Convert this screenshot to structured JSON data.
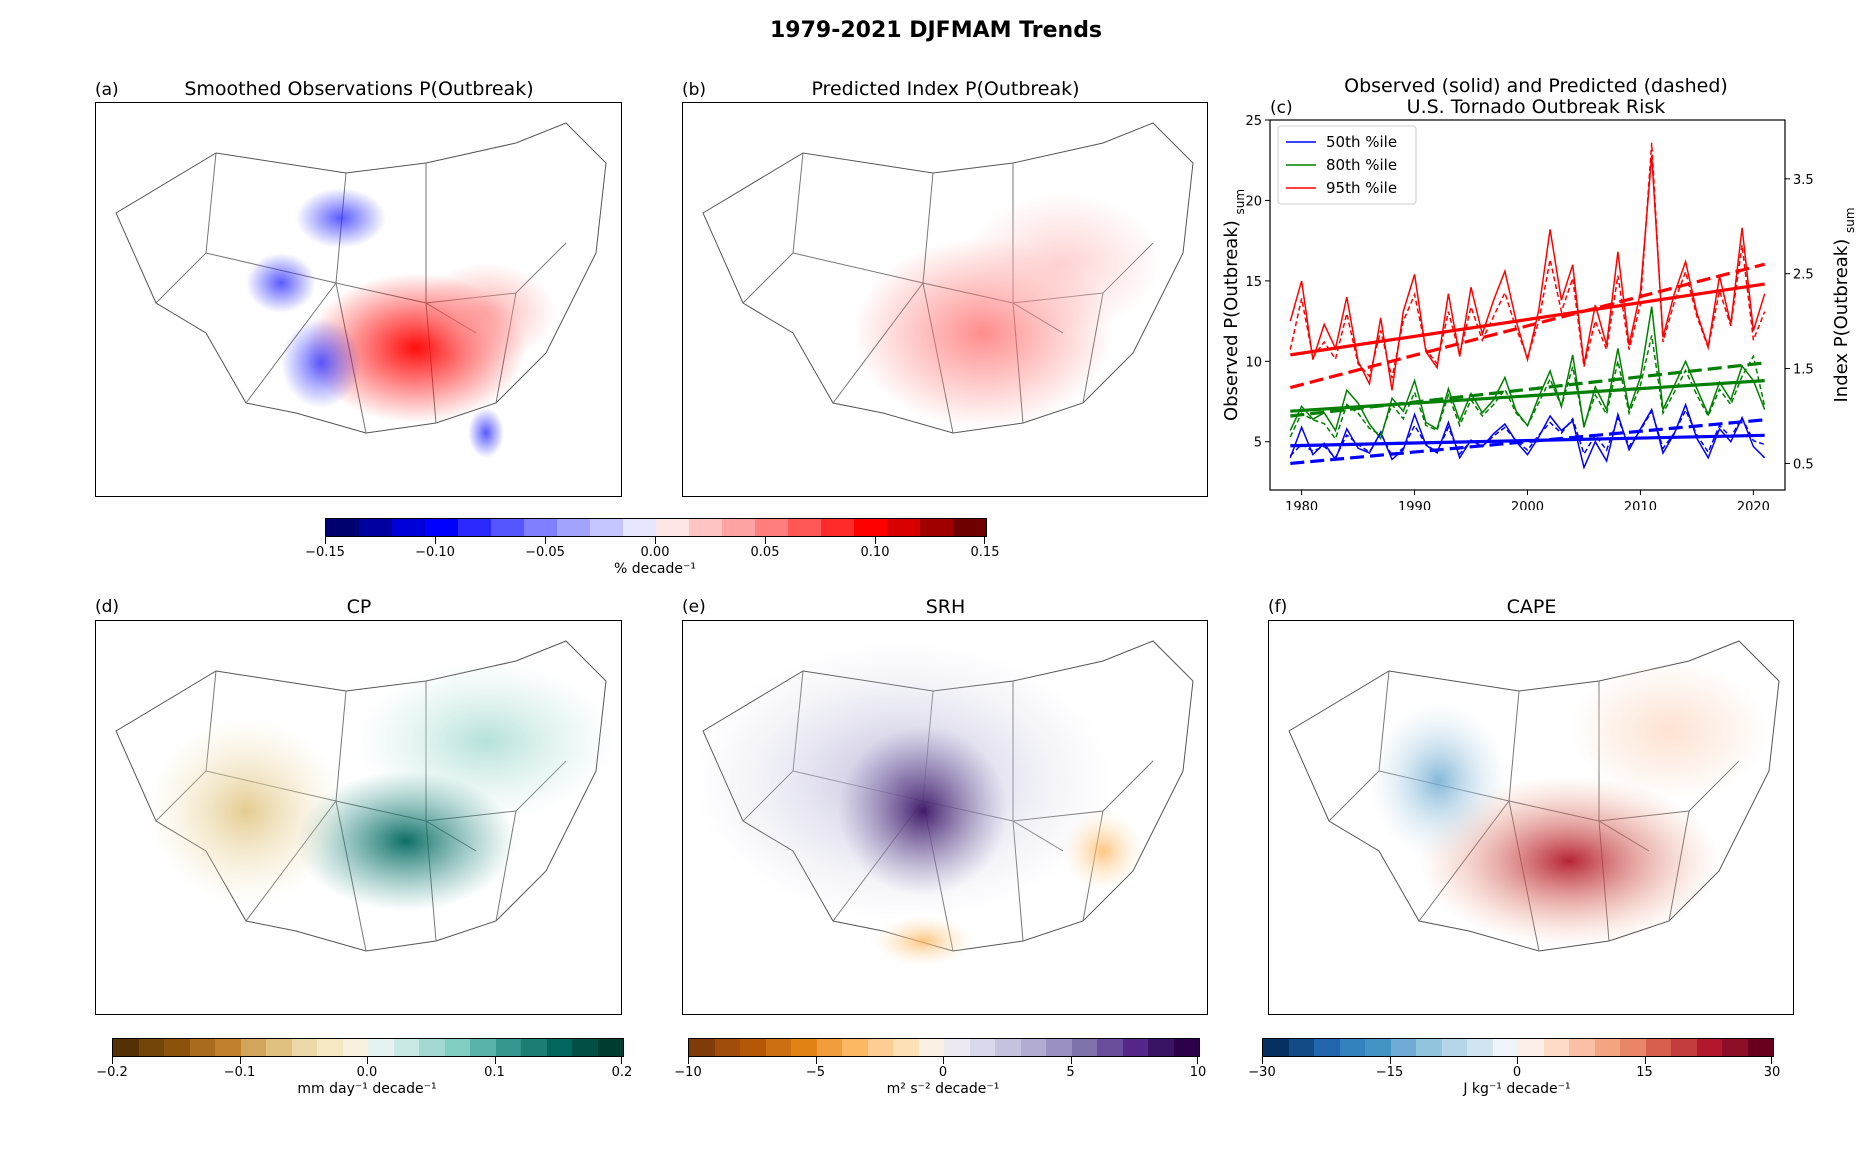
{
  "figure": {
    "title": "1979-2021 DJFMAM Trends"
  },
  "panels": {
    "a": {
      "label": "(a)",
      "title": "Smoothed Observations P(Outbreak)"
    },
    "b": {
      "label": "(b)",
      "title": "Predicted Index P(Outbreak)"
    },
    "c": {
      "label": "(c)",
      "title_line1": "Observed (solid) and Predicted (dashed)",
      "title_line2": "U.S. Tornado Outbreak Risk"
    },
    "d": {
      "label": "(d)",
      "title": "CP"
    },
    "e": {
      "label": "(e)",
      "title": "SRH"
    },
    "f": {
      "label": "(f)",
      "title": "CAPE"
    }
  },
  "colorbars": {
    "top": {
      "label": "% decade⁻¹",
      "ticks": [
        "−0.15",
        "−0.10",
        "−0.05",
        "0.00",
        "0.05",
        "0.10",
        "0.15"
      ],
      "colors": [
        "#00006e",
        "#0000a0",
        "#0000d8",
        "#0000ff",
        "#2a2aff",
        "#5656ff",
        "#7f7fff",
        "#a2a2ff",
        "#c4c4ff",
        "#e6e6ff",
        "#ffe6e6",
        "#ffc4c4",
        "#ffa2a2",
        "#ff7f7f",
        "#ff5656",
        "#ff2a2a",
        "#ff0000",
        "#d80000",
        "#a00000",
        "#6e0000"
      ]
    },
    "cp": {
      "label": "mm day⁻¹ decade⁻¹",
      "ticks": [
        "−0.2",
        "−0.1",
        "0.0",
        "0.1",
        "0.2"
      ],
      "colors": [
        "#543005",
        "#744508",
        "#8c510a",
        "#a86c1c",
        "#bf812d",
        "#d2a55c",
        "#dfc27d",
        "#ebd9a8",
        "#f6e8c3",
        "#f8f1e0",
        "#e4f3f1",
        "#c7eae5",
        "#a3d9d1",
        "#80cdc1",
        "#5ab4ac",
        "#35978f",
        "#1c7d75",
        "#01665e",
        "#014f45",
        "#003c30"
      ]
    },
    "srh": {
      "label": "m² s⁻² decade⁻¹",
      "ticks": [
        "−10",
        "−5",
        "0",
        "5",
        "10"
      ],
      "colors": [
        "#7f3b08",
        "#a04c0a",
        "#b35806",
        "#cc6f12",
        "#e08214",
        "#f09e3c",
        "#fdb863",
        "#fdcd92",
        "#fee0b6",
        "#faf0e4",
        "#ece9f2",
        "#d8daeb",
        "#c4c2dd",
        "#b2abd2",
        "#9b90c2",
        "#8073ac",
        "#6a4d9c",
        "#542788",
        "#3b1364",
        "#2d004b"
      ]
    },
    "cape": {
      "label": "J kg⁻¹ decade⁻¹",
      "ticks": [
        "−30",
        "−15",
        "0",
        "15",
        "30"
      ],
      "colors": [
        "#053061",
        "#124b86",
        "#2166ac",
        "#3381bd",
        "#4393c3",
        "#6fabd2",
        "#92c5de",
        "#b5d6e8",
        "#d1e5f0",
        "#eef4f8",
        "#fcefe8",
        "#fddbc7",
        "#f9c2a6",
        "#f4a582",
        "#e8866a",
        "#d6604d",
        "#c33b3d",
        "#b2182b",
        "#8c0e27",
        "#67001f"
      ]
    }
  },
  "chart_data": {
    "type": "line",
    "title": "Observed (solid) and Predicted (dashed) U.S. Tornado Outbreak Risk",
    "xlabel": "",
    "ylabel": "Observed P(Outbreak)sum",
    "ylabel_main": "Observed P(Outbreak)",
    "ylabel_sub": "sum",
    "y2label_main": "Index P(Outbreak)",
    "y2label_sub": "sum",
    "xlim": [
      1977.2,
      2022.8
    ],
    "ylim": [
      2.0,
      25.0
    ],
    "y2lim": [
      0.22,
      4.12
    ],
    "xticks": [
      1980,
      1990,
      2000,
      2010,
      2020
    ],
    "yticks": [
      5,
      10,
      15,
      20,
      25
    ],
    "y2ticks": [
      0.5,
      1.5,
      2.5,
      3.5
    ],
    "legend_position": "top-left",
    "x": [
      1979,
      1980,
      1981,
      1982,
      1983,
      1984,
      1985,
      1986,
      1987,
      1988,
      1989,
      1990,
      1991,
      1992,
      1993,
      1994,
      1995,
      1996,
      1997,
      1998,
      1999,
      2000,
      2001,
      2002,
      2003,
      2004,
      2005,
      2006,
      2007,
      2008,
      2009,
      2010,
      2011,
      2012,
      2013,
      2014,
      2015,
      2016,
      2017,
      2018,
      2019,
      2020,
      2021
    ],
    "series": [
      {
        "name": "50th %ile",
        "color": "#0000ff",
        "style": "solid",
        "axis": "left",
        "values": [
          4.0,
          5.9,
          4.2,
          4.9,
          3.9,
          5.8,
          4.6,
          4.3,
          5.6,
          3.9,
          4.5,
          6.7,
          4.8,
          4.3,
          6.2,
          4.0,
          5.1,
          4.7,
          5.5,
          6.1,
          5.0,
          4.2,
          5.3,
          6.6,
          5.7,
          6.3,
          3.4,
          5.0,
          3.8,
          6.7,
          4.5,
          5.8,
          7.0,
          4.3,
          5.5,
          7.3,
          5.2,
          4.0,
          5.8,
          5.0,
          6.5,
          4.7,
          4.0
        ]
      },
      {
        "name": "80th %ile",
        "color": "#008000",
        "style": "solid",
        "axis": "left",
        "values": [
          5.7,
          7.2,
          6.4,
          6.8,
          5.7,
          8.2,
          7.4,
          6.1,
          5.2,
          7.7,
          6.9,
          8.8,
          6.2,
          5.8,
          8.3,
          6.3,
          8.0,
          6.8,
          7.6,
          9.0,
          6.9,
          6.0,
          7.8,
          9.4,
          7.2,
          10.4,
          5.9,
          8.4,
          7.0,
          10.8,
          7.0,
          9.0,
          13.4,
          7.0,
          8.5,
          10.0,
          8.3,
          6.7,
          8.7,
          7.6,
          9.7,
          8.8,
          7.0
        ]
      },
      {
        "name": "95th %ile",
        "color": "#ff0000",
        "style": "solid",
        "axis": "left",
        "values": [
          12.5,
          15.0,
          10.1,
          12.3,
          10.8,
          14.0,
          10.0,
          8.6,
          12.7,
          8.2,
          13.1,
          15.4,
          10.6,
          9.6,
          14.2,
          10.3,
          14.6,
          11.7,
          13.8,
          15.6,
          12.5,
          10.1,
          13.2,
          18.2,
          13.8,
          16.0,
          9.8,
          13.5,
          11.0,
          16.8,
          11.0,
          14.3,
          22.8,
          11.5,
          14.2,
          16.2,
          13.0,
          10.9,
          15.3,
          12.3,
          18.3,
          11.9,
          14.2
        ]
      },
      {
        "name": "50th %ile predicted",
        "color": "#0000ff",
        "style": "dashed",
        "axis": "right",
        "values": [
          0.58,
          0.7,
          0.63,
          0.68,
          0.56,
          0.8,
          0.7,
          0.62,
          0.82,
          0.58,
          0.66,
          0.9,
          0.7,
          0.62,
          0.88,
          0.6,
          0.74,
          0.68,
          0.79,
          0.88,
          0.74,
          0.64,
          0.8,
          0.93,
          0.82,
          0.97,
          0.6,
          0.8,
          0.64,
          0.98,
          0.68,
          0.85,
          1.05,
          0.66,
          0.82,
          1.06,
          0.8,
          0.62,
          0.9,
          0.78,
          0.98,
          0.74,
          0.7
        ]
      },
      {
        "name": "80th %ile predicted",
        "color": "#008000",
        "style": "dashed",
        "axis": "right",
        "values": [
          0.78,
          1.03,
          0.96,
          0.92,
          0.76,
          1.12,
          1.03,
          0.87,
          0.8,
          1.12,
          0.97,
          1.25,
          0.9,
          0.85,
          1.22,
          0.9,
          1.17,
          1.0,
          1.12,
          1.28,
          1.03,
          0.9,
          1.14,
          1.39,
          1.1,
          1.52,
          0.9,
          1.22,
          1.02,
          1.58,
          1.03,
          1.32,
          1.85,
          1.03,
          1.25,
          1.48,
          1.22,
          1.0,
          1.28,
          1.12,
          1.42,
          1.63,
          1.1
        ]
      },
      {
        "name": "95th %ile predicted",
        "color": "#ff0000",
        "style": "dashed",
        "axis": "right",
        "values": [
          1.7,
          2.24,
          1.62,
          1.78,
          1.6,
          2.08,
          1.55,
          1.42,
          1.9,
          1.4,
          2.0,
          2.28,
          1.7,
          1.55,
          2.1,
          1.65,
          2.15,
          1.8,
          2.05,
          2.3,
          1.92,
          1.62,
          2.0,
          2.65,
          2.1,
          2.45,
          1.52,
          2.0,
          1.7,
          2.48,
          1.7,
          2.18,
          3.88,
          1.78,
          2.2,
          2.52,
          2.05,
          1.72,
          2.32,
          1.95,
          2.8,
          1.8,
          2.1
        ]
      }
    ],
    "trends": [
      {
        "color": "#0000ff",
        "style": "solid",
        "axis": "left",
        "start": 4.75,
        "end": 5.4
      },
      {
        "color": "#008000",
        "style": "solid",
        "axis": "left",
        "start": 6.9,
        "end": 8.8
      },
      {
        "color": "#ff0000",
        "style": "solid",
        "axis": "left",
        "start": 10.4,
        "end": 14.8
      },
      {
        "color": "#0000ff",
        "style": "dashed",
        "axis": "right",
        "start": 0.5,
        "end": 0.96
      },
      {
        "color": "#008000",
        "style": "dashed",
        "axis": "right",
        "start": 1.0,
        "end": 1.56
      },
      {
        "color": "#ff0000",
        "style": "dashed",
        "axis": "right",
        "start": 1.3,
        "end": 2.6
      }
    ]
  }
}
